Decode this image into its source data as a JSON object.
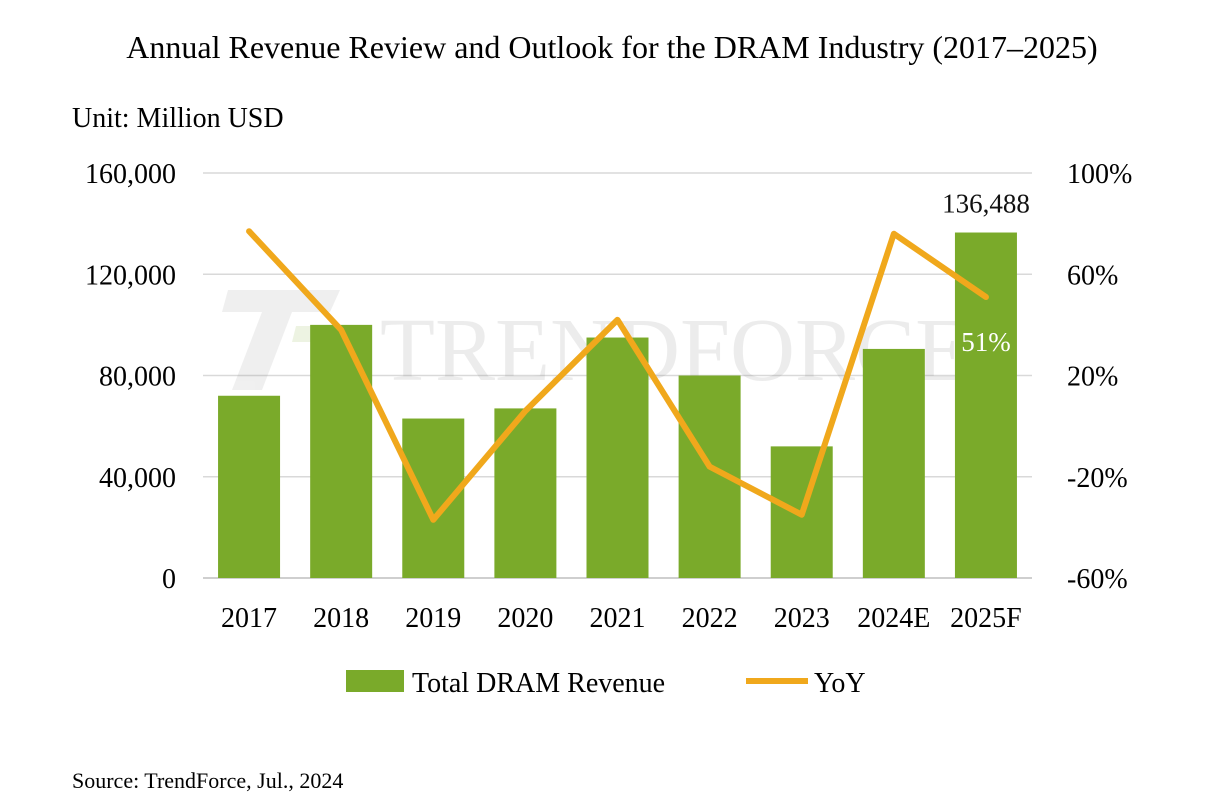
{
  "chart_data": {
    "type": "bar",
    "title": "Annual Revenue Review and Outlook for the DRAM Industry (2017–2025)",
    "unit_label": "Unit: Million USD",
    "categories": [
      "2017",
      "2018",
      "2019",
      "2020",
      "2021",
      "2022",
      "2023",
      "2024E",
      "2025F"
    ],
    "series": [
      {
        "name": "Total DRAM Revenue",
        "type": "bar",
        "axis": "left",
        "color": "#7aaa2a",
        "values": [
          72000,
          100000,
          63000,
          67000,
          95000,
          80000,
          52000,
          90500,
          136488
        ]
      },
      {
        "name": "YoY",
        "type": "line",
        "axis": "right",
        "color": "#f0a81c",
        "values": [
          77,
          38,
          -37,
          6,
          42,
          -16,
          -35,
          76,
          51
        ]
      }
    ],
    "left_axis": {
      "min": 0,
      "max": 160000,
      "ticks": [
        "160,000",
        "120,000",
        "80,000",
        "40,000",
        "0"
      ],
      "tick_values": [
        160000,
        120000,
        80000,
        40000,
        0
      ]
    },
    "right_axis": {
      "min": -60,
      "max": 100,
      "ticks": [
        "100%",
        "60%",
        "20%",
        "-20%",
        "-60%"
      ],
      "tick_values": [
        100,
        60,
        20,
        -20,
        -60
      ]
    },
    "annotations": [
      {
        "text": "136,488",
        "category": "2025F",
        "position": "above-bar"
      },
      {
        "text": "51%",
        "category": "2025F",
        "position": "inside-bar"
      }
    ],
    "grid": true,
    "legend": {
      "position": "bottom",
      "entries": [
        "Total DRAM Revenue",
        "YoY"
      ]
    },
    "watermark": "TRENDFORCE",
    "source": "Source: TrendForce, Jul., 2024"
  }
}
